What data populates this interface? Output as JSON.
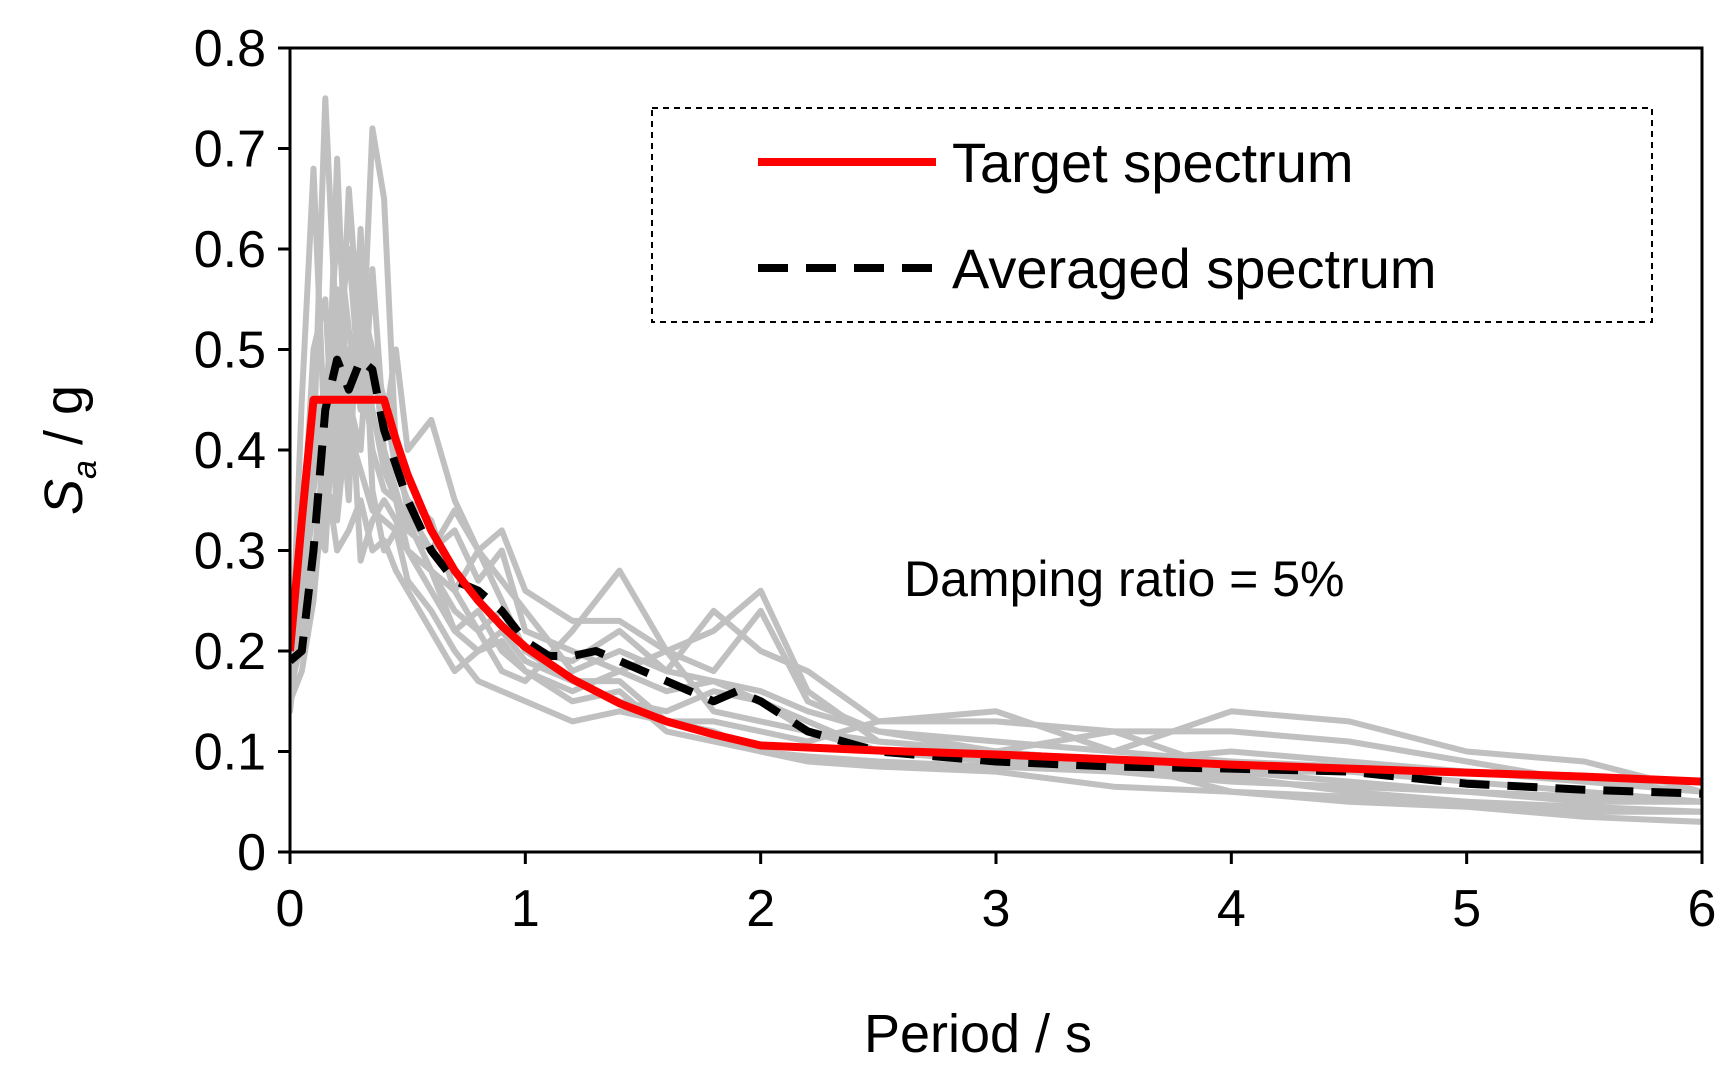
{
  "chart_data": {
    "type": "line",
    "title": "",
    "xlabel": "Period / s",
    "ylabel_main": "S",
    "ylabel_sub": "a",
    "ylabel_rest": " / g",
    "xlim": [
      0,
      6
    ],
    "ylim": [
      0,
      0.8
    ],
    "xticks": [
      0,
      1,
      2,
      3,
      4,
      5,
      6
    ],
    "xtick_labels": [
      "0",
      "1",
      "2",
      "3",
      "4",
      "5",
      "6"
    ],
    "yticks": [
      0,
      0.1,
      0.2,
      0.3,
      0.4,
      0.5,
      0.6,
      0.7,
      0.8
    ],
    "ytick_labels": [
      "0",
      "0.1",
      "0.2",
      "0.3",
      "0.4",
      "0.5",
      "0.6",
      "0.7",
      "0.8"
    ],
    "grid": false,
    "legend_position": "top-right",
    "annotation": "Damping ratio = 5%",
    "colors": {
      "target": "#ff0000",
      "averaged": "#000000",
      "records": "#c0c0c0"
    },
    "series": [
      {
        "name": "Target spectrum",
        "style": "solid",
        "x": [
          0,
          0.05,
          0.1,
          0.4,
          0.45,
          0.5,
          0.6,
          0.7,
          0.8,
          0.9,
          1.0,
          1.2,
          1.4,
          1.6,
          1.8,
          2.0,
          2.2,
          2.5,
          3.0,
          3.5,
          4.0,
          4.5,
          5.0,
          5.5,
          6.0
        ],
        "y": [
          0.2,
          0.33,
          0.45,
          0.45,
          0.41,
          0.375,
          0.32,
          0.28,
          0.25,
          0.225,
          0.204,
          0.172,
          0.148,
          0.13,
          0.117,
          0.106,
          0.104,
          0.101,
          0.097,
          0.092,
          0.087,
          0.083,
          0.079,
          0.075,
          0.07
        ]
      },
      {
        "name": "Averaged spectrum",
        "style": "dashed",
        "x": [
          0,
          0.05,
          0.1,
          0.15,
          0.2,
          0.25,
          0.3,
          0.35,
          0.4,
          0.5,
          0.6,
          0.7,
          0.8,
          0.9,
          1.0,
          1.1,
          1.2,
          1.3,
          1.4,
          1.6,
          1.8,
          1.9,
          2.0,
          2.2,
          2.5,
          3.0,
          3.5,
          4.0,
          4.5,
          5.0,
          5.5,
          6.0
        ],
        "y": [
          0.19,
          0.2,
          0.3,
          0.44,
          0.49,
          0.46,
          0.49,
          0.48,
          0.42,
          0.35,
          0.3,
          0.27,
          0.26,
          0.24,
          0.21,
          0.195,
          0.195,
          0.2,
          0.19,
          0.17,
          0.15,
          0.16,
          0.15,
          0.12,
          0.1,
          0.09,
          0.085,
          0.083,
          0.08,
          0.068,
          0.062,
          0.058
        ]
      }
    ],
    "records": [
      {
        "x": [
          0,
          0.05,
          0.1,
          0.15,
          0.2,
          0.25,
          0.3,
          0.35,
          0.4,
          0.45,
          0.5,
          0.6,
          0.7,
          0.8,
          0.9,
          1.0,
          1.2,
          1.4,
          1.6,
          1.8,
          2.0,
          2.2,
          2.5,
          3.0,
          3.5,
          4.0,
          4.5,
          5.0,
          5.5,
          6.0
        ],
        "y": [
          0.15,
          0.45,
          0.68,
          0.4,
          0.56,
          0.45,
          0.52,
          0.44,
          0.38,
          0.35,
          0.3,
          0.28,
          0.22,
          0.24,
          0.2,
          0.18,
          0.15,
          0.16,
          0.12,
          0.11,
          0.1,
          0.095,
          0.09,
          0.085,
          0.08,
          0.075,
          0.06,
          0.05,
          0.045,
          0.04
        ]
      },
      {
        "x": [
          0,
          0.05,
          0.1,
          0.15,
          0.2,
          0.25,
          0.3,
          0.35,
          0.4,
          0.45,
          0.5,
          0.6,
          0.7,
          0.8,
          0.9,
          1.0,
          1.2,
          1.4,
          1.6,
          1.8,
          2.0,
          2.2,
          2.5,
          3.0,
          3.5,
          4.0,
          4.5,
          5.0,
          5.5,
          6.0
        ],
        "y": [
          0.14,
          0.25,
          0.4,
          0.75,
          0.5,
          0.6,
          0.45,
          0.72,
          0.65,
          0.4,
          0.34,
          0.3,
          0.32,
          0.27,
          0.3,
          0.22,
          0.2,
          0.18,
          0.16,
          0.17,
          0.15,
          0.12,
          0.1,
          0.09,
          0.085,
          0.08,
          0.07,
          0.06,
          0.05,
          0.05
        ]
      },
      {
        "x": [
          0,
          0.05,
          0.1,
          0.15,
          0.2,
          0.25,
          0.3,
          0.35,
          0.4,
          0.45,
          0.5,
          0.6,
          0.7,
          0.8,
          0.9,
          1.0,
          1.2,
          1.4,
          1.6,
          1.8,
          2.0,
          2.2,
          2.5,
          3.0,
          3.5,
          4.0,
          4.5,
          5.0,
          5.5,
          6.0
        ],
        "y": [
          0.16,
          0.22,
          0.3,
          0.35,
          0.69,
          0.4,
          0.55,
          0.5,
          0.45,
          0.38,
          0.35,
          0.33,
          0.26,
          0.22,
          0.18,
          0.17,
          0.22,
          0.28,
          0.2,
          0.22,
          0.26,
          0.16,
          0.11,
          0.1,
          0.09,
          0.06,
          0.055,
          0.05,
          0.04,
          0.04
        ]
      },
      {
        "x": [
          0,
          0.05,
          0.1,
          0.15,
          0.2,
          0.25,
          0.3,
          0.35,
          0.4,
          0.45,
          0.5,
          0.6,
          0.7,
          0.8,
          0.9,
          1.0,
          1.2,
          1.4,
          1.6,
          1.8,
          2.0,
          2.2,
          2.5,
          3.0,
          3.5,
          4.0,
          4.5,
          5.0,
          5.5,
          6.0
        ],
        "y": [
          0.18,
          0.2,
          0.28,
          0.33,
          0.36,
          0.42,
          0.38,
          0.34,
          0.33,
          0.32,
          0.3,
          0.28,
          0.26,
          0.3,
          0.27,
          0.24,
          0.18,
          0.2,
          0.18,
          0.24,
          0.2,
          0.18,
          0.13,
          0.14,
          0.1,
          0.14,
          0.13,
          0.1,
          0.09,
          0.06
        ]
      },
      {
        "x": [
          0,
          0.05,
          0.1,
          0.15,
          0.2,
          0.25,
          0.3,
          0.35,
          0.4,
          0.45,
          0.5,
          0.6,
          0.7,
          0.8,
          0.9,
          1.0,
          1.2,
          1.4,
          1.6,
          1.8,
          2.0,
          2.2,
          2.5,
          3.0,
          3.5,
          4.0,
          4.5,
          5.0,
          5.5,
          6.0
        ],
        "y": [
          0.2,
          0.26,
          0.34,
          0.3,
          0.5,
          0.35,
          0.62,
          0.36,
          0.3,
          0.32,
          0.27,
          0.24,
          0.2,
          0.17,
          0.16,
          0.15,
          0.13,
          0.14,
          0.13,
          0.12,
          0.1,
          0.09,
          0.085,
          0.08,
          0.065,
          0.06,
          0.05,
          0.045,
          0.035,
          0.03
        ]
      },
      {
        "x": [
          0,
          0.05,
          0.1,
          0.15,
          0.2,
          0.25,
          0.3,
          0.35,
          0.4,
          0.45,
          0.5,
          0.6,
          0.7,
          0.8,
          0.9,
          1.0,
          1.2,
          1.4,
          1.6,
          1.8,
          2.0,
          2.2,
          2.5,
          3.0,
          3.5,
          4.0,
          4.5,
          5.0,
          5.5,
          6.0
        ],
        "y": [
          0.17,
          0.3,
          0.5,
          0.55,
          0.33,
          0.45,
          0.4,
          0.58,
          0.42,
          0.5,
          0.4,
          0.43,
          0.35,
          0.3,
          0.25,
          0.2,
          0.17,
          0.17,
          0.13,
          0.13,
          0.12,
          0.11,
          0.13,
          0.13,
          0.12,
          0.08,
          0.08,
          0.07,
          0.06,
          0.05
        ]
      },
      {
        "x": [
          0,
          0.05,
          0.1,
          0.15,
          0.2,
          0.25,
          0.3,
          0.35,
          0.4,
          0.45,
          0.5,
          0.6,
          0.7,
          0.8,
          0.9,
          1.0,
          1.2,
          1.4,
          1.6,
          1.8,
          2.0,
          2.2,
          2.5,
          3.0,
          3.5,
          4.0,
          4.5,
          5.0,
          5.5,
          6.0
        ],
        "y": [
          0.15,
          0.18,
          0.25,
          0.38,
          0.3,
          0.32,
          0.35,
          0.3,
          0.31,
          0.28,
          0.26,
          0.22,
          0.18,
          0.2,
          0.22,
          0.19,
          0.17,
          0.15,
          0.14,
          0.16,
          0.15,
          0.13,
          0.1,
          0.09,
          0.08,
          0.07,
          0.065,
          0.06,
          0.055,
          0.05
        ]
      },
      {
        "x": [
          0,
          0.05,
          0.1,
          0.15,
          0.2,
          0.25,
          0.3,
          0.35,
          0.4,
          0.45,
          0.5,
          0.6,
          0.7,
          0.8,
          0.9,
          1.0,
          1.2,
          1.4,
          1.6,
          1.8,
          2.0,
          2.2,
          2.5,
          3.0,
          3.5,
          4.0,
          4.5,
          5.0,
          5.5,
          6.0
        ],
        "y": [
          0.19,
          0.24,
          0.36,
          0.44,
          0.62,
          0.52,
          0.44,
          0.5,
          0.4,
          0.36,
          0.32,
          0.3,
          0.34,
          0.3,
          0.32,
          0.26,
          0.23,
          0.23,
          0.2,
          0.18,
          0.24,
          0.15,
          0.12,
          0.1,
          0.12,
          0.12,
          0.11,
          0.09,
          0.07,
          0.06
        ]
      },
      {
        "x": [
          0,
          0.05,
          0.1,
          0.15,
          0.2,
          0.25,
          0.3,
          0.35,
          0.4,
          0.45,
          0.5,
          0.6,
          0.7,
          0.8,
          0.9,
          1.0,
          1.2,
          1.4,
          1.6,
          1.8,
          2.0,
          2.2,
          2.5,
          3.0,
          3.5,
          4.0,
          4.5,
          5.0,
          5.5,
          6.0
        ],
        "y": [
          0.16,
          0.21,
          0.28,
          0.42,
          0.38,
          0.5,
          0.29,
          0.33,
          0.35,
          0.33,
          0.3,
          0.26,
          0.22,
          0.2,
          0.21,
          0.18,
          0.16,
          0.18,
          0.2,
          0.14,
          0.13,
          0.12,
          0.11,
          0.1,
          0.09,
          0.1,
          0.09,
          0.08,
          0.07,
          0.07
        ]
      },
      {
        "x": [
          0,
          0.05,
          0.1,
          0.15,
          0.2,
          0.25,
          0.3,
          0.35,
          0.4,
          0.45,
          0.5,
          0.6,
          0.7,
          0.8,
          0.9,
          1.0,
          1.2,
          1.4,
          1.6,
          1.8,
          2.0,
          2.2,
          2.5,
          3.0,
          3.5,
          4.0,
          4.5,
          5.0,
          5.5,
          6.0
        ],
        "y": [
          0.2,
          0.27,
          0.4,
          0.47,
          0.4,
          0.66,
          0.5,
          0.4,
          0.36,
          0.35,
          0.33,
          0.28,
          0.24,
          0.22,
          0.24,
          0.2,
          0.19,
          0.22,
          0.18,
          0.17,
          0.16,
          0.14,
          0.12,
          0.11,
          0.1,
          0.09,
          0.085,
          0.08,
          0.075,
          0.07
        ]
      }
    ]
  }
}
